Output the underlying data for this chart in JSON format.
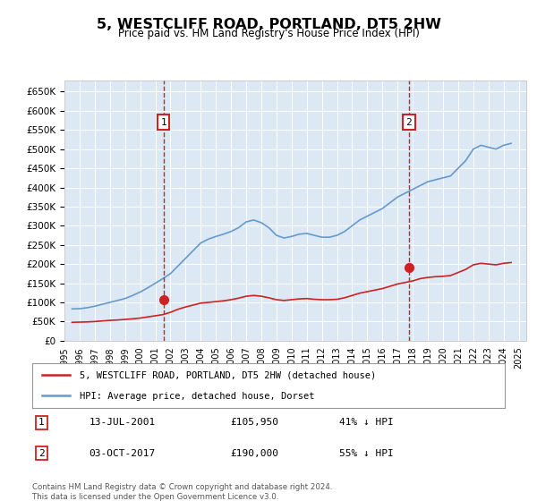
{
  "title": "5, WESTCLIFF ROAD, PORTLAND, DT5 2HW",
  "subtitle": "Price paid vs. HM Land Registry's House Price Index (HPI)",
  "ylabel_ticks": [
    "£0",
    "£50K",
    "£100K",
    "£150K",
    "£200K",
    "£250K",
    "£300K",
    "£350K",
    "£400K",
    "£450K",
    "£500K",
    "£550K",
    "£600K",
    "£650K"
  ],
  "ytick_vals": [
    0,
    50000,
    100000,
    150000,
    200000,
    250000,
    300000,
    350000,
    400000,
    450000,
    500000,
    550000,
    600000,
    650000
  ],
  "ylim": [
    0,
    680000
  ],
  "background_color": "#dce9f5",
  "plot_bg": "#dce9f5",
  "legend_label_red": "5, WESTCLIFF ROAD, PORTLAND, DT5 2HW (detached house)",
  "legend_label_blue": "HPI: Average price, detached house, Dorset",
  "transaction1_date": "13-JUL-2001",
  "transaction1_price": 105950,
  "transaction1_label": "£105,950",
  "transaction1_hpi": "41% ↓ HPI",
  "transaction2_date": "03-OCT-2017",
  "transaction2_price": 190000,
  "transaction2_label": "£190,000",
  "transaction2_hpi": "55% ↓ HPI",
  "footer": "Contains HM Land Registry data © Crown copyright and database right 2024.\nThis data is licensed under the Open Government Licence v3.0.",
  "hpi_x": [
    1995.5,
    1996.0,
    1996.5,
    1997.0,
    1997.5,
    1998.0,
    1998.5,
    1999.0,
    1999.5,
    2000.0,
    2000.5,
    2001.0,
    2001.5,
    2002.0,
    2002.5,
    2003.0,
    2003.5,
    2004.0,
    2004.5,
    2005.0,
    2005.5,
    2006.0,
    2006.5,
    2007.0,
    2007.5,
    2008.0,
    2008.5,
    2009.0,
    2009.5,
    2010.0,
    2010.5,
    2011.0,
    2011.5,
    2012.0,
    2012.5,
    2013.0,
    2013.5,
    2014.0,
    2014.5,
    2015.0,
    2015.5,
    2016.0,
    2016.5,
    2017.0,
    2017.5,
    2018.0,
    2018.5,
    2019.0,
    2019.5,
    2020.0,
    2020.5,
    2021.0,
    2021.5,
    2022.0,
    2022.5,
    2023.0,
    2023.5,
    2024.0,
    2024.5
  ],
  "hpi_y": [
    83000,
    83500,
    86000,
    90000,
    95000,
    100000,
    105000,
    110000,
    118000,
    127000,
    138000,
    150000,
    162000,
    175000,
    195000,
    215000,
    235000,
    255000,
    265000,
    272000,
    278000,
    285000,
    295000,
    310000,
    315000,
    308000,
    295000,
    275000,
    268000,
    272000,
    278000,
    280000,
    275000,
    270000,
    270000,
    275000,
    285000,
    300000,
    315000,
    325000,
    335000,
    345000,
    360000,
    375000,
    385000,
    395000,
    405000,
    415000,
    420000,
    425000,
    430000,
    450000,
    470000,
    500000,
    510000,
    505000,
    500000,
    510000,
    515000
  ],
  "red_x": [
    1995.5,
    1996.0,
    1996.5,
    1997.0,
    1997.5,
    1998.0,
    1998.5,
    1999.0,
    1999.5,
    2000.0,
    2000.5,
    2001.0,
    2001.5,
    2002.0,
    2002.5,
    2003.0,
    2003.5,
    2004.0,
    2004.5,
    2005.0,
    2005.5,
    2006.0,
    2006.5,
    2007.0,
    2007.5,
    2008.0,
    2008.5,
    2009.0,
    2009.5,
    2010.0,
    2010.5,
    2011.0,
    2011.5,
    2012.0,
    2012.5,
    2013.0,
    2013.5,
    2014.0,
    2014.5,
    2015.0,
    2015.5,
    2016.0,
    2016.5,
    2017.0,
    2017.5,
    2018.0,
    2018.5,
    2019.0,
    2019.5,
    2020.0,
    2020.5,
    2021.0,
    2021.5,
    2022.0,
    2022.5,
    2023.0,
    2023.5,
    2024.0,
    2024.5
  ],
  "red_y": [
    48000,
    48500,
    49000,
    50000,
    51500,
    53000,
    54000,
    55500,
    57000,
    59000,
    62000,
    65000,
    68000,
    74000,
    82000,
    88000,
    93000,
    98000,
    100000,
    102000,
    104000,
    107000,
    111000,
    116000,
    118000,
    116000,
    112000,
    107000,
    105000,
    107000,
    109000,
    110000,
    108000,
    107000,
    107000,
    108000,
    112000,
    118000,
    124000,
    128000,
    132000,
    136000,
    142000,
    148000,
    152000,
    156000,
    162000,
    165000,
    167000,
    168000,
    170000,
    178000,
    186000,
    198000,
    202000,
    200000,
    198000,
    202000,
    204000
  ],
  "trans1_x": 2001.54,
  "trans1_y": 105950,
  "trans2_x": 2017.75,
  "trans2_y": 190000,
  "vline1_x": 2001.54,
  "vline2_x": 2017.75,
  "xtick_years": [
    1995,
    1996,
    1997,
    1998,
    1999,
    2000,
    2001,
    2002,
    2003,
    2004,
    2005,
    2006,
    2007,
    2008,
    2009,
    2010,
    2011,
    2012,
    2013,
    2014,
    2015,
    2016,
    2017,
    2018,
    2019,
    2020,
    2021,
    2022,
    2023,
    2024,
    2025
  ]
}
